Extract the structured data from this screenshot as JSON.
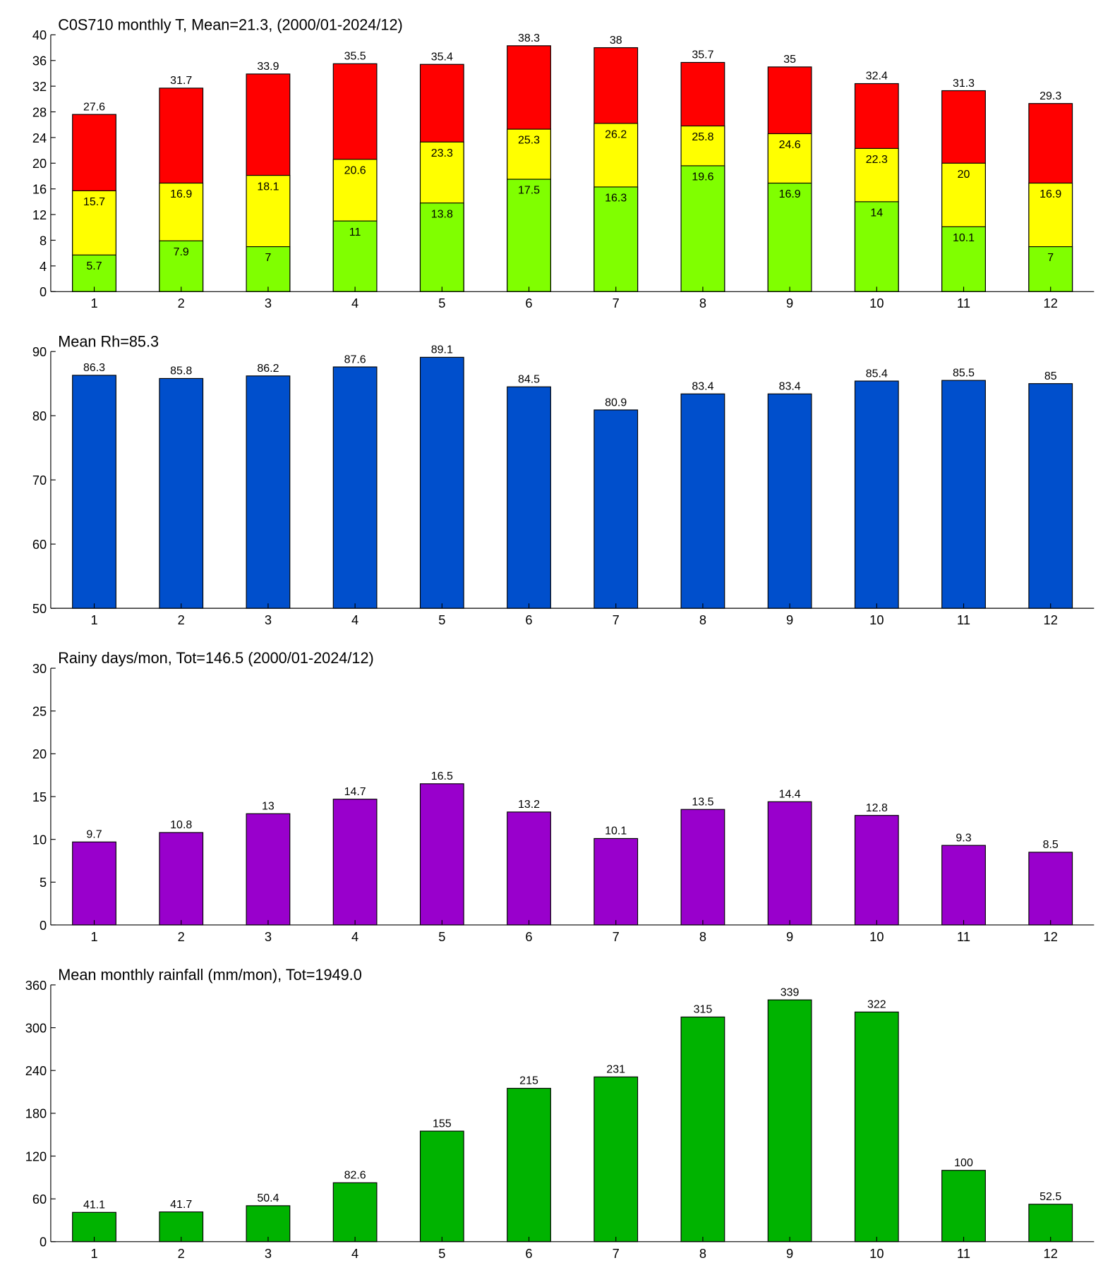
{
  "chart_data": [
    {
      "type": "bar",
      "barmode": "overlay",
      "title": "C0S710 monthly T, Mean=21.3, (2000/01-2024/12)",
      "categories": [
        "1",
        "2",
        "3",
        "4",
        "5",
        "6",
        "7",
        "8",
        "9",
        "10",
        "11",
        "12"
      ],
      "series": [
        {
          "color": "#ff0000",
          "values": [
            27.6,
            31.7,
            33.9,
            35.5,
            35.4,
            38.3,
            38,
            35.7,
            35,
            32.4,
            31.3,
            29.3
          ]
        },
        {
          "color": "#ffff00",
          "values": [
            15.7,
            16.9,
            18.1,
            20.6,
            23.3,
            25.3,
            26.2,
            25.8,
            24.6,
            22.3,
            20,
            16.9
          ]
        },
        {
          "color": "#80ff00",
          "values": [
            5.7,
            7.9,
            7,
            11,
            13.8,
            17.5,
            16.3,
            19.6,
            16.9,
            14,
            10.1,
            7
          ]
        }
      ],
      "ylim": [
        0,
        40
      ],
      "yticks": [
        0,
        4,
        8,
        12,
        16,
        20,
        24,
        28,
        32,
        36,
        40
      ]
    },
    {
      "type": "bar",
      "title": "Mean Rh=85.3",
      "categories": [
        "1",
        "2",
        "3",
        "4",
        "5",
        "6",
        "7",
        "8",
        "9",
        "10",
        "11",
        "12"
      ],
      "series": [
        {
          "color": "#004fcc",
          "values": [
            86.3,
            85.8,
            86.2,
            87.6,
            89.1,
            84.5,
            80.9,
            83.4,
            83.4,
            85.4,
            85.5,
            85
          ]
        }
      ],
      "ylim": [
        50,
        90
      ],
      "yticks": [
        50,
        60,
        70,
        80,
        90
      ]
    },
    {
      "type": "bar",
      "title": "Rainy days/mon, Tot=146.5 (2000/01-2024/12)",
      "categories": [
        "1",
        "2",
        "3",
        "4",
        "5",
        "6",
        "7",
        "8",
        "9",
        "10",
        "11",
        "12"
      ],
      "series": [
        {
          "color": "#9900cc",
          "values": [
            9.7,
            10.8,
            13,
            14.7,
            16.5,
            13.2,
            10.1,
            13.5,
            14.4,
            12.8,
            9.3,
            8.5
          ]
        }
      ],
      "ylim": [
        0,
        30
      ],
      "yticks": [
        0,
        5,
        10,
        15,
        20,
        25,
        30
      ]
    },
    {
      "type": "bar",
      "title": "Mean monthly rainfall (mm/mon), Tot=1949.0",
      "categories": [
        "1",
        "2",
        "3",
        "4",
        "5",
        "6",
        "7",
        "8",
        "9",
        "10",
        "11",
        "12"
      ],
      "series": [
        {
          "color": "#00b300",
          "values": [
            41.1,
            41.7,
            50.4,
            82.6,
            155,
            215,
            231,
            315,
            339,
            322,
            100,
            52.5
          ]
        }
      ],
      "ylim": [
        0,
        360
      ],
      "yticks": [
        0,
        60,
        120,
        180,
        240,
        300,
        360
      ]
    }
  ]
}
